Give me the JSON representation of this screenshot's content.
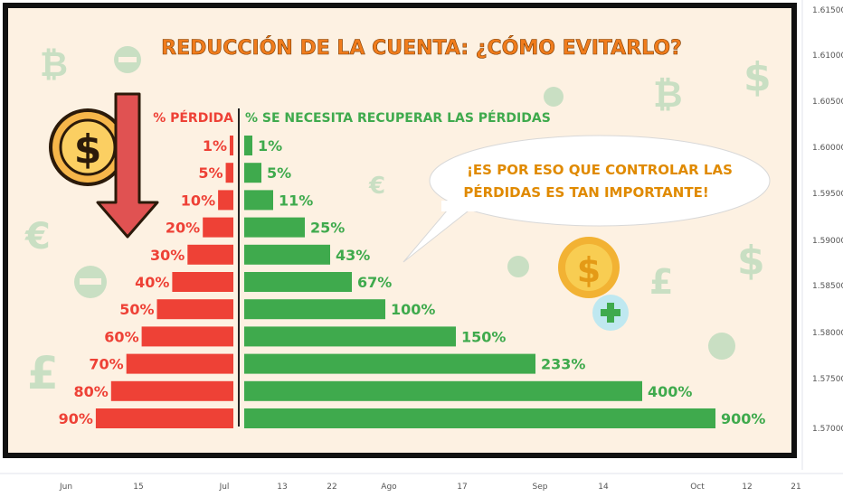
{
  "title": "REDUCCIÓN DE LA CUENTA: ¿CÓMO EVITARLO?",
  "header_loss": "% PÉRDIDA",
  "header_recover": "% SE NECESITA RECUPERAR LAS PÉRDIDAS",
  "bubble_line1": "¡ES POR ESO QUE CONTROLAR LAS",
  "bubble_line2": "PÉRDIDAS ES TAN IMPORTANTE!",
  "colors": {
    "loss": "#ee4136",
    "recover": "#3faa4d",
    "title": "#f07c1c",
    "frame": "#111111",
    "panel": "#fdf1e2"
  },
  "icons": [
    "dollar-coin-icon",
    "down-arrow-icon",
    "dollar-coin-plus-icon",
    "bitcoin-icon",
    "euro-icon",
    "pound-icon",
    "dollar-sign-icon",
    "minus-circle-icon",
    "plus-circle-icon"
  ],
  "chart_data": {
    "type": "bar",
    "orientation": "horizontal-butterfly",
    "series": [
      {
        "name": "% PÉRDIDA",
        "values": [
          1,
          5,
          10,
          20,
          30,
          40,
          50,
          60,
          70,
          80,
          90
        ]
      },
      {
        "name": "% SE NECESITA RECUPERAR LAS PÉRDIDAS",
        "values": [
          1,
          5,
          11,
          25,
          43,
          67,
          100,
          150,
          233,
          400,
          900
        ]
      }
    ],
    "loss_labels": [
      "1%",
      "5%",
      "10%",
      "20%",
      "30%",
      "40%",
      "50%",
      "60%",
      "70%",
      "80%",
      "90%"
    ],
    "recover_labels": [
      "1%",
      "5%",
      "11%",
      "25%",
      "43%",
      "67%",
      "100%",
      "150%",
      "233%",
      "400%",
      "900%"
    ]
  },
  "price_axis": [
    "1.61500",
    "1.61000",
    "1.60500",
    "1.60000",
    "1.59500",
    "1.59000",
    "1.58500",
    "1.58000",
    "1.57500",
    "1.57000"
  ],
  "time_axis": [
    "Jun",
    "15",
    "Jul",
    "13",
    "22",
    "Ago",
    "17",
    "Sep",
    "14",
    "Oct",
    "12",
    "21"
  ]
}
